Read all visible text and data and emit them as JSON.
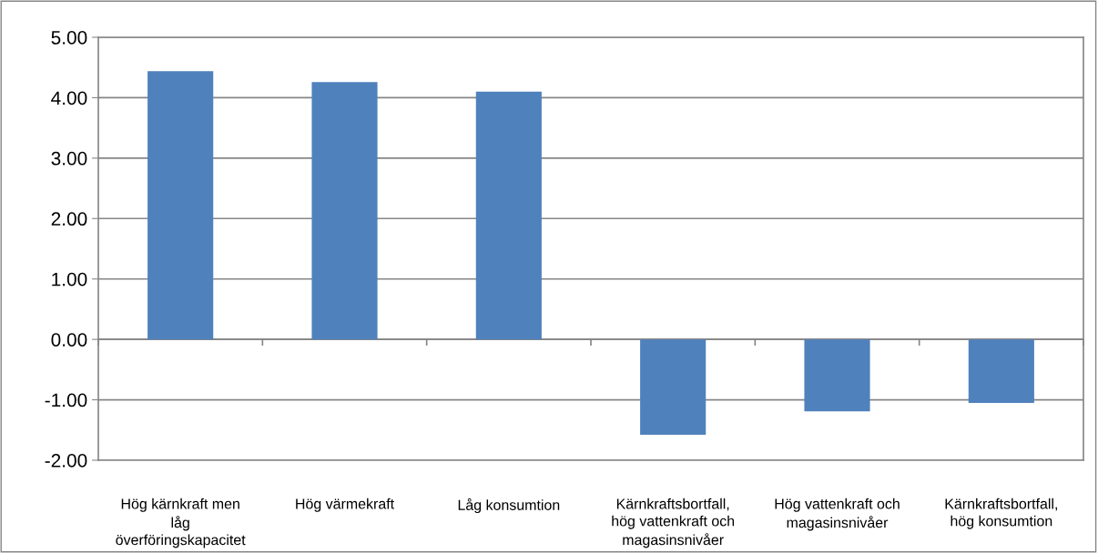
{
  "chart_data": {
    "type": "bar",
    "categories": [
      "Hög kärnkraft men\nlåg\növerföringskapacitet",
      "Hög värmekraft",
      "Låg konsumtion",
      "Kärnkraftsbortfall,\nhög vattenkraft och\nmagasinsnivåer",
      "Hög vattenkraft och\nmagasinsnivåer",
      "Kärnkraftsbortfall,\nhög konsumtion"
    ],
    "values": [
      4.44,
      4.26,
      4.1,
      -1.58,
      -1.19,
      -1.05
    ],
    "color": "#4f81bd",
    "ylim": [
      -2,
      5
    ],
    "yticks": [
      {
        "value": -2,
        "label": "-2.00"
      },
      {
        "value": -1,
        "label": "-1.00"
      },
      {
        "value": 0,
        "label": "0.00"
      },
      {
        "value": 1,
        "label": "1.00"
      },
      {
        "value": 2,
        "label": "2.00"
      },
      {
        "value": 3,
        "label": "3.00"
      },
      {
        "value": 4,
        "label": "4.00"
      },
      {
        "value": 5,
        "label": "5.00"
      }
    ],
    "grid": "y",
    "legend": false
  }
}
